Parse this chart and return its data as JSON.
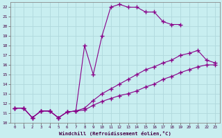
{
  "xlabel": "Windchill (Refroidissement éolien,°C)",
  "background_color": "#c8eef0",
  "grid_color": "#b0d8dc",
  "line_color": "#880088",
  "xlim": [
    -0.5,
    23.5
  ],
  "ylim": [
    10,
    22.5
  ],
  "xticks": [
    0,
    1,
    2,
    3,
    4,
    5,
    6,
    7,
    8,
    9,
    10,
    11,
    12,
    13,
    14,
    15,
    16,
    17,
    18,
    19,
    20,
    21,
    22,
    23
  ],
  "yticks": [
    10,
    11,
    12,
    13,
    14,
    15,
    16,
    17,
    18,
    19,
    20,
    21,
    22
  ],
  "line1_x": [
    0,
    1,
    2,
    3,
    4,
    5,
    6,
    7,
    8,
    9,
    10,
    11,
    12,
    13,
    14,
    15,
    16,
    17,
    18,
    19
  ],
  "line1_y": [
    11.5,
    11.5,
    10.5,
    11.2,
    11.2,
    10.5,
    11.1,
    11.2,
    18.0,
    15.0,
    19.0,
    22.0,
    22.3,
    22.0,
    22.0,
    21.5,
    21.5,
    20.5,
    20.2,
    20.2
  ],
  "line2_x": [
    0,
    1,
    2,
    3,
    4,
    5,
    6,
    7,
    8,
    9,
    10,
    11,
    12,
    13,
    14,
    15,
    16,
    17,
    18,
    19,
    20,
    21,
    22,
    23
  ],
  "line2_y": [
    11.5,
    11.5,
    10.5,
    11.2,
    11.2,
    10.5,
    11.1,
    11.2,
    11.5,
    12.3,
    13.0,
    13.5,
    14.0,
    14.5,
    15.0,
    15.5,
    15.8,
    16.2,
    16.5,
    17.0,
    17.2,
    17.5,
    16.5,
    16.2
  ],
  "line3_x": [
    0,
    1,
    2,
    3,
    4,
    5,
    6,
    7,
    8,
    9,
    10,
    11,
    12,
    13,
    14,
    15,
    16,
    17,
    18,
    19,
    20,
    21,
    22,
    23
  ],
  "line3_y": [
    11.5,
    11.5,
    10.5,
    11.2,
    11.2,
    10.5,
    11.1,
    11.2,
    11.3,
    11.8,
    12.2,
    12.5,
    12.8,
    13.0,
    13.3,
    13.7,
    14.0,
    14.5,
    14.8,
    15.2,
    15.5,
    15.8,
    16.0,
    16.0
  ]
}
